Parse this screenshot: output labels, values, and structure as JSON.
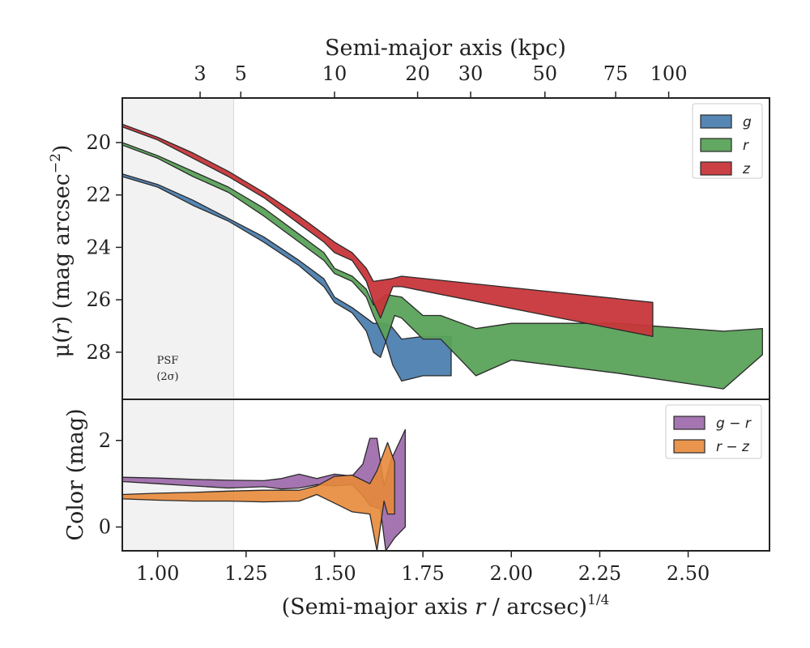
{
  "chart_data": [
    {
      "panel": "top",
      "type": "area",
      "x_top_axis": {
        "label": "Semi-major axis (kpc)",
        "tick_labels": [
          "3",
          "5",
          "10",
          "20",
          "30",
          "50",
          "75",
          "100"
        ],
        "tick_values_kpc": [
          3,
          5,
          10,
          20,
          30,
          50,
          75,
          100
        ],
        "tick_x_positions": [
          1.12,
          1.235,
          1.5,
          1.735,
          1.885,
          2.095,
          2.295,
          2.445
        ]
      },
      "ylabel": "μ(r) (mag arcsec⁻²)",
      "ylim": [
        29.8,
        18.3
      ],
      "xlim": [
        0.9,
        2.73
      ],
      "yticks": [
        20,
        22,
        24,
        26,
        28
      ],
      "psf_region": {
        "x_start": 0.9,
        "x_end": 1.215,
        "label_line1": "PSF",
        "label_line2": "(2σ)"
      },
      "legend": {
        "position": "top-right",
        "entries": [
          "g",
          "r",
          "z"
        ]
      },
      "series": [
        {
          "name": "g",
          "color": "#4c7fb0",
          "upper": [
            [
              0.9,
              21.2
            ],
            [
              1.0,
              21.6
            ],
            [
              1.1,
              22.2
            ],
            [
              1.2,
              22.9
            ],
            [
              1.3,
              23.6
            ],
            [
              1.4,
              24.5
            ],
            [
              1.47,
              25.2
            ],
            [
              1.5,
              25.9
            ],
            [
              1.55,
              26.3
            ],
            [
              1.59,
              26.7
            ],
            [
              1.61,
              26.9
            ],
            [
              1.64,
              26.9
            ],
            [
              1.66,
              27.0
            ],
            [
              1.69,
              27.5
            ],
            [
              1.75,
              27.4
            ],
            [
              1.83,
              27.4
            ]
          ],
          "lower": [
            [
              0.9,
              21.3
            ],
            [
              1.0,
              21.7
            ],
            [
              1.1,
              22.4
            ],
            [
              1.2,
              23.0
            ],
            [
              1.3,
              23.8
            ],
            [
              1.4,
              24.7
            ],
            [
              1.47,
              25.5
            ],
            [
              1.5,
              26.1
            ],
            [
              1.55,
              26.5
            ],
            [
              1.59,
              27.2
            ],
            [
              1.61,
              28.0
            ],
            [
              1.63,
              28.2
            ],
            [
              1.645,
              27.6
            ],
            [
              1.665,
              28.5
            ],
            [
              1.69,
              29.1
            ],
            [
              1.75,
              28.9
            ],
            [
              1.83,
              28.9
            ]
          ]
        },
        {
          "name": "r",
          "color": "#5aa25a",
          "upper": [
            [
              0.9,
              20.0
            ],
            [
              1.0,
              20.5
            ],
            [
              1.1,
              21.1
            ],
            [
              1.2,
              21.7
            ],
            [
              1.3,
              22.5
            ],
            [
              1.4,
              23.5
            ],
            [
              1.47,
              24.2
            ],
            [
              1.5,
              24.8
            ],
            [
              1.55,
              25.1
            ],
            [
              1.59,
              25.6
            ],
            [
              1.61,
              26.2
            ],
            [
              1.645,
              25.8
            ],
            [
              1.69,
              25.9
            ],
            [
              1.75,
              26.6
            ],
            [
              1.8,
              26.6
            ],
            [
              1.9,
              27.1
            ],
            [
              2.0,
              26.9
            ],
            [
              2.3,
              26.9
            ],
            [
              2.6,
              27.2
            ],
            [
              2.71,
              27.1
            ]
          ],
          "lower": [
            [
              0.9,
              20.1
            ],
            [
              1.0,
              20.6
            ],
            [
              1.1,
              21.3
            ],
            [
              1.2,
              21.9
            ],
            [
              1.3,
              22.8
            ],
            [
              1.4,
              23.8
            ],
            [
              1.47,
              24.5
            ],
            [
              1.5,
              25.0
            ],
            [
              1.55,
              25.3
            ],
            [
              1.59,
              25.9
            ],
            [
              1.61,
              26.6
            ],
            [
              1.645,
              27.6
            ],
            [
              1.67,
              26.6
            ],
            [
              1.69,
              26.7
            ],
            [
              1.75,
              27.5
            ],
            [
              1.8,
              27.5
            ],
            [
              1.9,
              28.9
            ],
            [
              2.0,
              28.3
            ],
            [
              2.3,
              28.8
            ],
            [
              2.6,
              29.4
            ],
            [
              2.71,
              28.1
            ]
          ]
        },
        {
          "name": "z",
          "color": "#c8363a",
          "upper": [
            [
              0.9,
              19.3
            ],
            [
              1.0,
              19.8
            ],
            [
              1.1,
              20.4
            ],
            [
              1.2,
              21.1
            ],
            [
              1.3,
              21.9
            ],
            [
              1.4,
              22.8
            ],
            [
              1.47,
              23.5
            ],
            [
              1.5,
              23.8
            ],
            [
              1.55,
              24.2
            ],
            [
              1.59,
              24.8
            ],
            [
              1.61,
              25.3
            ],
            [
              1.66,
              25.2
            ],
            [
              1.69,
              25.1
            ],
            [
              2.4,
              26.1
            ]
          ],
          "lower": [
            [
              0.9,
              19.4
            ],
            [
              1.0,
              19.9
            ],
            [
              1.1,
              20.6
            ],
            [
              1.2,
              21.3
            ],
            [
              1.3,
              22.1
            ],
            [
              1.4,
              23.1
            ],
            [
              1.47,
              23.8
            ],
            [
              1.5,
              24.2
            ],
            [
              1.55,
              24.5
            ],
            [
              1.59,
              25.3
            ],
            [
              1.61,
              26.1
            ],
            [
              1.63,
              26.7
            ],
            [
              1.665,
              25.5
            ],
            [
              1.69,
              25.5
            ],
            [
              2.4,
              27.4
            ]
          ]
        }
      ]
    },
    {
      "panel": "bottom",
      "type": "area",
      "xlabel": "(Semi-major axis r / arcsec)^{1/4}",
      "ylabel": "Color (mag)",
      "ylim": [
        -0.55,
        2.95
      ],
      "xlim": [
        0.9,
        2.73
      ],
      "yticks": [
        0,
        2
      ],
      "xticks": [
        1.0,
        1.25,
        1.5,
        1.75,
        2.0,
        2.25,
        2.5
      ],
      "xtick_labels": [
        "1.00",
        "1.25",
        "1.50",
        "1.75",
        "2.00",
        "2.25",
        "2.50"
      ],
      "psf_region": {
        "x_start": 0.9,
        "x_end": 1.215
      },
      "legend": {
        "position": "top-right",
        "entries": [
          "g − r",
          "r − z"
        ]
      },
      "series": [
        {
          "name": "g − r",
          "color": "#9b66a8",
          "upper": [
            [
              0.9,
              1.15
            ],
            [
              1.0,
              1.13
            ],
            [
              1.1,
              1.1
            ],
            [
              1.2,
              1.08
            ],
            [
              1.3,
              1.07
            ],
            [
              1.35,
              1.12
            ],
            [
              1.4,
              1.22
            ],
            [
              1.45,
              1.12
            ],
            [
              1.5,
              1.22
            ],
            [
              1.55,
              1.18
            ],
            [
              1.58,
              1.45
            ],
            [
              1.6,
              2.05
            ],
            [
              1.62,
              2.05
            ],
            [
              1.64,
              0.95
            ],
            [
              1.66,
              1.55
            ],
            [
              1.7,
              2.25
            ]
          ],
          "lower": [
            [
              0.9,
              1.05
            ],
            [
              1.0,
              1.0
            ],
            [
              1.1,
              0.95
            ],
            [
              1.2,
              0.9
            ],
            [
              1.3,
              0.93
            ],
            [
              1.35,
              0.88
            ],
            [
              1.4,
              0.9
            ],
            [
              1.45,
              0.98
            ],
            [
              1.5,
              0.95
            ],
            [
              1.55,
              0.98
            ],
            [
              1.58,
              0.72
            ],
            [
              1.6,
              0.5
            ],
            [
              1.63,
              0.42
            ],
            [
              1.645,
              -0.6
            ],
            [
              1.67,
              -0.25
            ],
            [
              1.7,
              0.0
            ]
          ]
        },
        {
          "name": "r − z",
          "color": "#e8893a",
          "upper": [
            [
              0.9,
              0.75
            ],
            [
              1.0,
              0.78
            ],
            [
              1.1,
              0.8
            ],
            [
              1.2,
              0.83
            ],
            [
              1.3,
              0.85
            ],
            [
              1.4,
              0.85
            ],
            [
              1.45,
              0.95
            ],
            [
              1.5,
              1.17
            ],
            [
              1.55,
              1.2
            ],
            [
              1.6,
              1.0
            ],
            [
              1.62,
              1.3
            ],
            [
              1.65,
              1.95
            ],
            [
              1.67,
              1.5
            ]
          ],
          "lower": [
            [
              0.9,
              0.65
            ],
            [
              1.0,
              0.62
            ],
            [
              1.1,
              0.6
            ],
            [
              1.2,
              0.6
            ],
            [
              1.3,
              0.58
            ],
            [
              1.4,
              0.6
            ],
            [
              1.45,
              0.75
            ],
            [
              1.5,
              0.55
            ],
            [
              1.55,
              0.35
            ],
            [
              1.6,
              0.3
            ],
            [
              1.62,
              -0.6
            ],
            [
              1.64,
              0.6
            ],
            [
              1.65,
              0.3
            ],
            [
              1.67,
              0.3
            ]
          ]
        }
      ]
    }
  ],
  "labels": {
    "top_xlabel": "Semi-major axis (kpc)",
    "top_ylabel_prefix": "μ(",
    "top_ylabel_var": "r",
    "top_ylabel_suffix": ") (mag arcsec",
    "top_ylabel_sup": "−2",
    "top_ylabel_close": ")",
    "bottom_ylabel": "Color (mag)",
    "bottom_xlabel_main": "(Semi-major axis ",
    "bottom_xlabel_var": "r",
    "bottom_xlabel_rest": " / arcsec)",
    "bottom_xlabel_sup": "1/4",
    "psf_line1": "PSF",
    "psf_line2": "(2σ)"
  }
}
